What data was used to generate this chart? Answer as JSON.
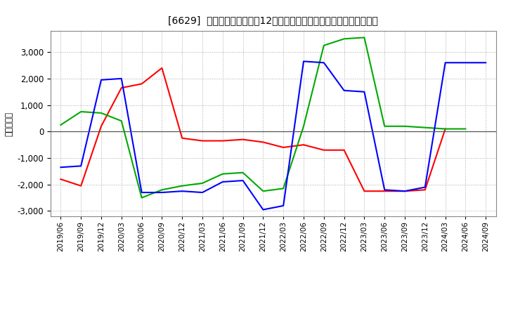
{
  "title": "[6629]  キャッシュフローの12か月移動合計の対前年同期増減額の推移",
  "ylabel": "（百万円）",
  "xlabels": [
    "2019/06",
    "2019/09",
    "2019/12",
    "2020/03",
    "2020/06",
    "2020/09",
    "2020/12",
    "2021/03",
    "2021/06",
    "2021/09",
    "2021/12",
    "2022/03",
    "2022/06",
    "2022/09",
    "2022/12",
    "2023/03",
    "2023/06",
    "2023/09",
    "2023/12",
    "2024/03",
    "2024/06",
    "2024/09"
  ],
  "営業CF": [
    -1800,
    -2050,
    200,
    1650,
    1800,
    2400,
    -250,
    -350,
    -350,
    -300,
    -400,
    -600,
    -500,
    -700,
    -700,
    -2250,
    -2250,
    -2250,
    -2200,
    100,
    null,
    null
  ],
  "投資CF": [
    250,
    750,
    700,
    400,
    -2500,
    -2200,
    -2050,
    -1950,
    -1600,
    -1550,
    -2250,
    -2150,
    200,
    3250,
    3500,
    3550,
    200,
    200,
    150,
    100,
    100,
    null
  ],
  "フリーCF": [
    -1350,
    -1300,
    1950,
    2000,
    -2300,
    -2300,
    -2250,
    -2300,
    -1900,
    -1850,
    -2950,
    -2800,
    2650,
    2600,
    1550,
    1500,
    -2200,
    -2250,
    -2100,
    2600,
    null,
    2600
  ],
  "ylim": [
    -3200,
    3800
  ],
  "yticks": [
    -3000,
    -2000,
    -1000,
    0,
    1000,
    2000,
    3000
  ],
  "colors": {
    "営業CF": "#ff0000",
    "投資CF": "#00aa00",
    "フリーCF": "#0000ff"
  },
  "background_color": "#ffffff",
  "plot_bg_color": "#ffffff",
  "grid_color": "#aaaaaa"
}
